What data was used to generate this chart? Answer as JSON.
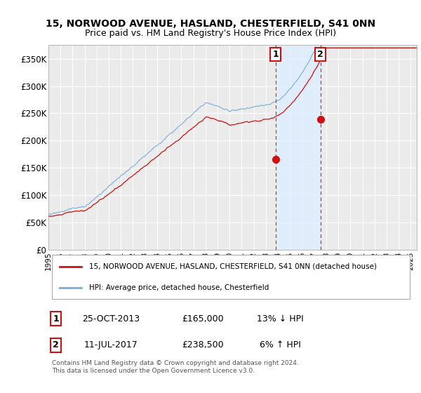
{
  "title": "15, NORWOOD AVENUE, HASLAND, CHESTERFIELD, S41 0NN",
  "subtitle": "Price paid vs. HM Land Registry's House Price Index (HPI)",
  "title_fontsize": 10,
  "subtitle_fontsize": 9,
  "ylabel_ticks": [
    "£0",
    "£50K",
    "£100K",
    "£150K",
    "£200K",
    "£250K",
    "£300K",
    "£350K"
  ],
  "ytick_values": [
    0,
    50000,
    100000,
    150000,
    200000,
    250000,
    300000,
    350000
  ],
  "ylim": [
    0,
    375000
  ],
  "xlim_start": 1995.0,
  "xlim_end": 2025.5,
  "background_color": "#ffffff",
  "plot_bg_color": "#ebebeb",
  "grid_color": "#ffffff",
  "hpi_color": "#7aadda",
  "price_color": "#cc1111",
  "sale1_x": 2013.82,
  "sale1_y": 165000,
  "sale2_x": 2017.53,
  "sale2_y": 238500,
  "vline_color": "#cc3333",
  "highlight_bg": "#ddeeff",
  "legend_line1": "15, NORWOOD AVENUE, HASLAND, CHESTERFIELD, S41 0NN (detached house)",
  "legend_line2": "HPI: Average price, detached house, Chesterfield",
  "table_row1": [
    "1",
    "25-OCT-2013",
    "£165,000",
    "13% ↓ HPI"
  ],
  "table_row2": [
    "2",
    "11-JUL-2017",
    "£238,500",
    "6% ↑ HPI"
  ],
  "footer": "Contains HM Land Registry data © Crown copyright and database right 2024.\nThis data is licensed under the Open Government Licence v3.0.",
  "xtick_years": [
    1995,
    1996,
    1997,
    1998,
    1999,
    2000,
    2001,
    2002,
    2003,
    2004,
    2005,
    2006,
    2007,
    2008,
    2009,
    2010,
    2011,
    2012,
    2013,
    2014,
    2015,
    2016,
    2017,
    2018,
    2019,
    2020,
    2021,
    2022,
    2023,
    2024,
    2025
  ]
}
